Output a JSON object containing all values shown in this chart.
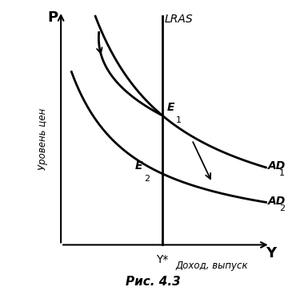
{
  "title": "Рис. 4.3",
  "ylabel": "Уровень цен",
  "xlabel": "Доход, выпуск",
  "p_label": "P",
  "y_label": "Y",
  "ystar_label": "Y*",
  "lras_label": "LRAS",
  "ad1_label": "AD",
  "ad1_sub": "1",
  "ad2_label": "AD",
  "ad2_sub": "2",
  "e1_label": "E",
  "e1_sub": "1",
  "e2_label": "E",
  "e2_sub": "2",
  "xmin": 0.0,
  "xmax": 10.0,
  "ymin": 0.0,
  "ymax": 10.0,
  "lras_x": 4.8,
  "ad1_A": 55.0,
  "ad1_b": 2.5,
  "ad2_A": 28.0,
  "ad2_b": 2.5,
  "background_color": "#ffffff",
  "curve_color": "#000000",
  "font_color": "#000000"
}
